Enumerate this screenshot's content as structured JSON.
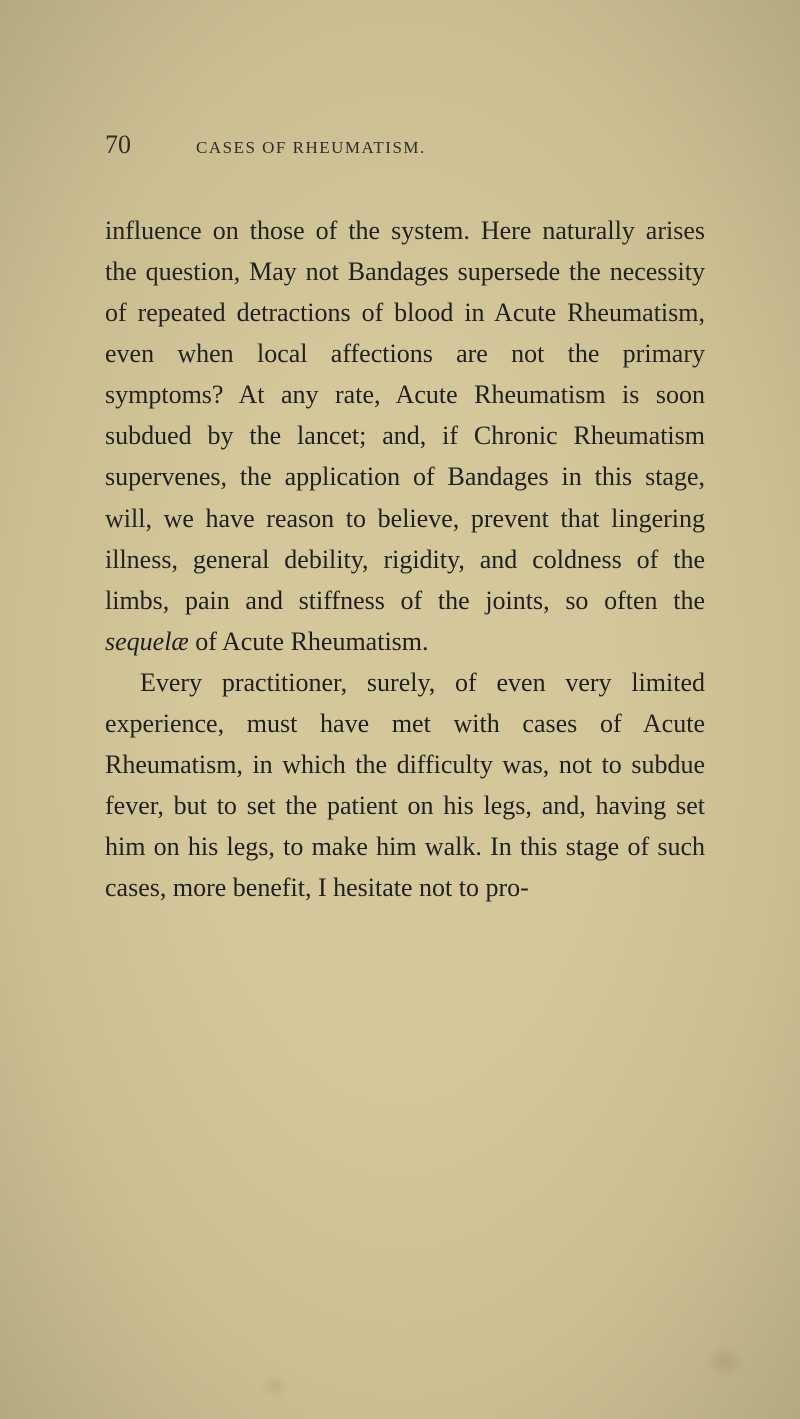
{
  "page": {
    "number": "70",
    "running_head": "CASES OF RHEUMATISM.",
    "paragraphs": [
      {
        "indent": false,
        "segments": [
          {
            "text": "influence on those of the system. Here naturally arises the question, May not Bandages supersede the necessity of repeated detractions of blood in Acute Rheumatism, even when local affections are not the primary symptoms? At any rate, Acute Rheumatism is soon subdued by the lancet; and, if Chronic Rheumatism supervenes, the application of Bandages in this stage, will, we have reason to believe, prevent that lingering illness, general debility, rigidity, and coldness of the limbs, pain and stiffness of the joints, so often the ",
            "italic": false
          },
          {
            "text": "sequelæ",
            "italic": true
          },
          {
            "text": " of Acute Rheumatism.",
            "italic": false
          }
        ]
      },
      {
        "indent": true,
        "segments": [
          {
            "text": "Every practitioner, surely, of even very limited experience, must have met with cases of Acute Rheumatism, in which the difficulty was, not to subdue fever, but to set the patient on his legs, and, having set him on his legs, to make him walk. In this stage of such cases, more benefit, I hesitate not to pro-",
            "italic": false
          }
        ]
      }
    ]
  }
}
